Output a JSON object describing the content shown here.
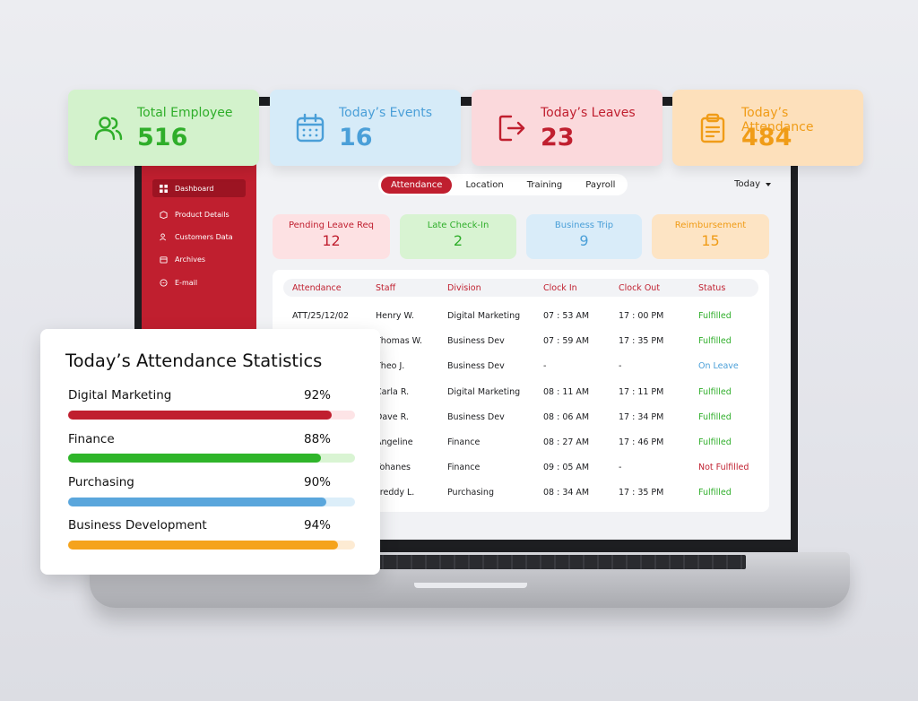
{
  "top_cards": [
    {
      "title": "Total Employee",
      "value": "516",
      "icon": "users-icon",
      "bg": "#d3f2cc",
      "color": "#2fae2a"
    },
    {
      "title": "Today’s Events",
      "value": "16",
      "icon": "calendar-icon",
      "bg": "#d6ebf8",
      "color": "#4a9fd8"
    },
    {
      "title": "Today’s Leaves",
      "value": "23",
      "icon": "logout-icon",
      "bg": "#fbd9dc",
      "color": "#c01f2f"
    },
    {
      "title": "Today’s Attendance",
      "value": "484",
      "icon": "clipboard-icon",
      "bg": "#fde0bb",
      "color": "#f09c17"
    }
  ],
  "sidebar": {
    "items": [
      {
        "label": "Dashboard",
        "icon": "grid-icon",
        "active": true
      },
      {
        "label": "Product Details",
        "icon": "box-icon"
      },
      {
        "label": "Customers Data",
        "icon": "users-icon"
      },
      {
        "label": "Archives",
        "icon": "archive-icon"
      },
      {
        "label": "E-mail",
        "icon": "chat-icon"
      }
    ]
  },
  "tabs": [
    "Attendance",
    "Location",
    "Training",
    "Payroll"
  ],
  "active_tab": "Attendance",
  "period": {
    "selected": "Today"
  },
  "pills": [
    {
      "label": "Pending Leave Req",
      "value": "12",
      "bg": "#fde1e3",
      "color": "#c01f2f"
    },
    {
      "label": "Late Check-In",
      "value": "2",
      "bg": "#d8f3d2",
      "color": "#2fae2a"
    },
    {
      "label": "Business Trip",
      "value": "9",
      "bg": "#d9ecf9",
      "color": "#4a9fd8"
    },
    {
      "label": "Reimbursement",
      "value": "15",
      "bg": "#fde4c4",
      "color": "#f09c17"
    }
  ],
  "table": {
    "headers": [
      "Attendance",
      "Staff",
      "Division",
      "Clock In",
      "Clock Out",
      "Status"
    ],
    "rows": [
      [
        "ATT/25/12/02",
        "Henry W.",
        "Digital Marketing",
        "07 : 53 AM",
        "17 : 00 PM",
        "Fulfilled"
      ],
      [
        "",
        "Thomas W.",
        "Business Dev",
        "07 : 59 AM",
        "17 : 35 PM",
        "Fulfilled"
      ],
      [
        "",
        "Theo J.",
        "Business Dev",
        "-",
        "-",
        "On Leave"
      ],
      [
        "",
        "Carla R.",
        "Digital Marketing",
        "08 : 11 AM",
        "17 : 11 PM",
        "Fulfilled"
      ],
      [
        "",
        "Dave R.",
        "Business Dev",
        "08 : 06 AM",
        "17 : 34 PM",
        "Fulfilled"
      ],
      [
        "",
        "Angeline",
        "Finance",
        "08 : 27 AM",
        "17 : 46 PM",
        "Fulfilled"
      ],
      [
        "",
        "Yohanes",
        "Finance",
        "09 : 05 AM",
        "-",
        "Not Fulfilled"
      ],
      [
        "",
        "Freddy L.",
        "Purchasing",
        "08 : 34 AM",
        "17 : 35 PM",
        "Fulfilled"
      ]
    ],
    "status_colors": {
      "Fulfilled": "#2fae2a",
      "On Leave": "#4a9fd8",
      "Not Fulfilled": "#c01f2f"
    }
  },
  "stats": {
    "title": "Today’s Attendance Statistics",
    "items": [
      {
        "label": "Digital Marketing",
        "pct_text": "92%",
        "value": 92,
        "color": "#c01f2f",
        "track": "#fde4e6"
      },
      {
        "label": "Finance",
        "pct_text": "88%",
        "value": 88,
        "color": "#2fb52a",
        "track": "#d9f4d3"
      },
      {
        "label": "Purchasing",
        "pct_text": "90%",
        "value": 90,
        "color": "#5aa6dc",
        "track": "#dceef9"
      },
      {
        "label": "Business Development",
        "pct_text": "94%",
        "value": 94,
        "color": "#f5a31c",
        "track": "#fdebd3"
      }
    ]
  }
}
